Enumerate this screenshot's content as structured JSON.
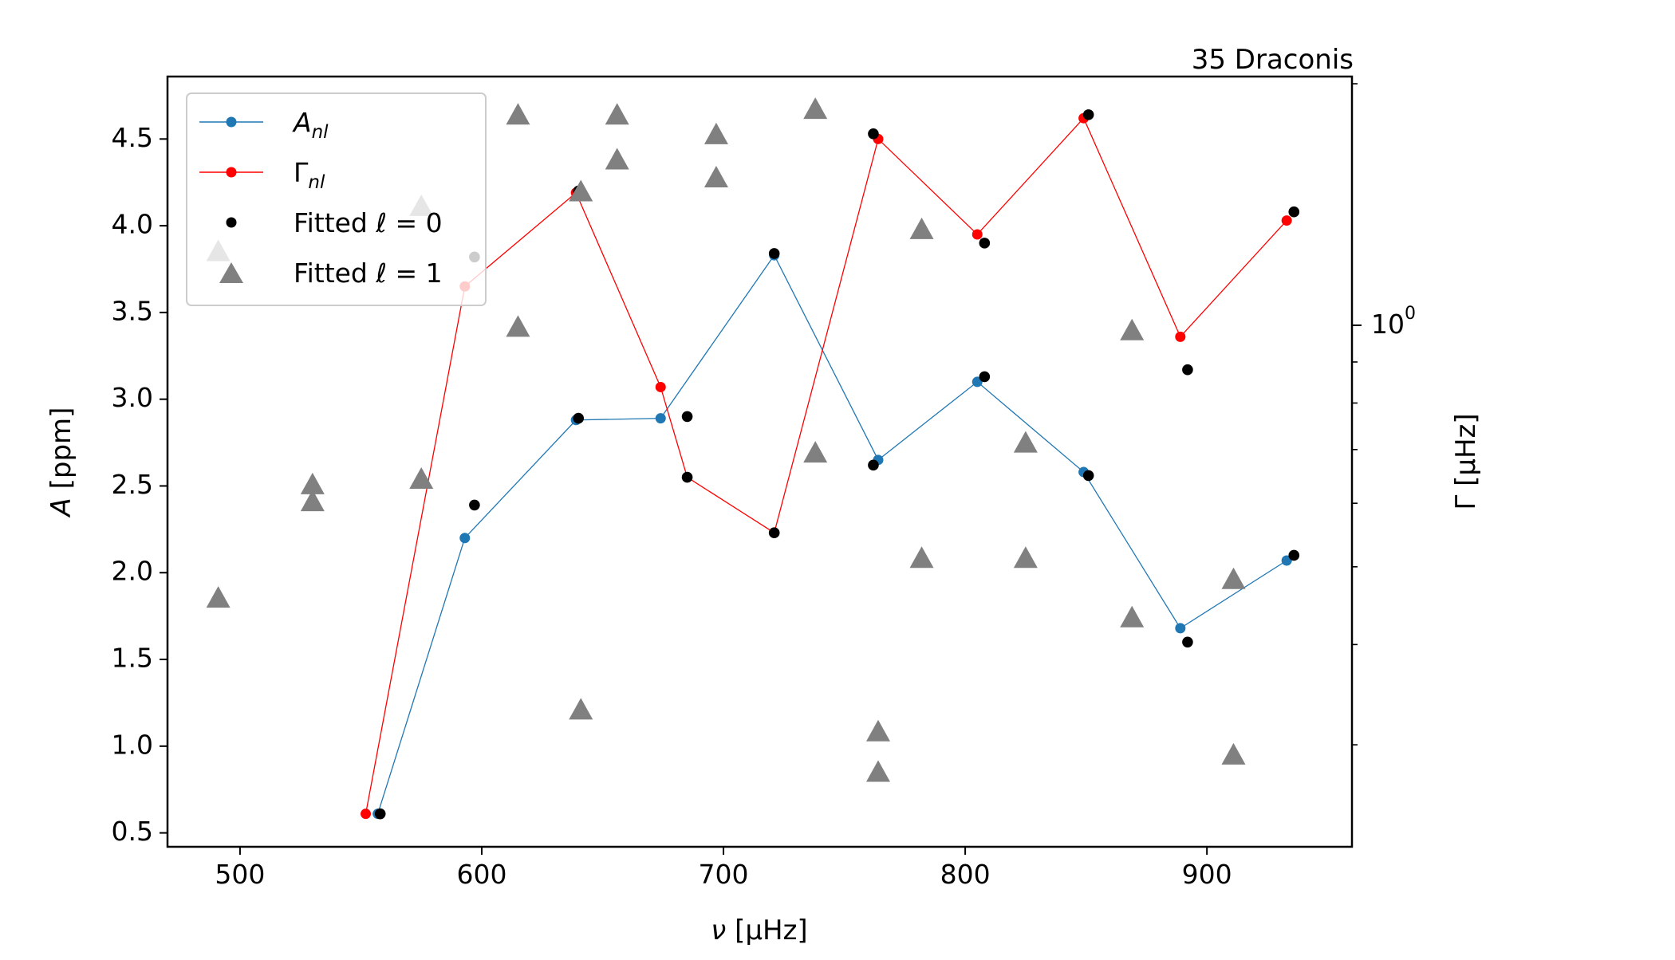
{
  "chart_data": {
    "type": "scatter",
    "title": "35 Draconis",
    "xlabel": {
      "main": "ν",
      "unit": "[μHz]"
    },
    "ylabel_left": {
      "main": "A",
      "unit": "[ppm]"
    },
    "ylabel_right": {
      "main": "Γ",
      "unit": "[μHz]"
    },
    "xlim": [
      470,
      960
    ],
    "ylim_left": [
      0.42,
      4.86
    ],
    "ylim_right_log10": [
      -0.65,
      0.31
    ],
    "y_right_scale": "log",
    "grid": false,
    "legend_position": "top-left",
    "x_ticks": [
      500,
      600,
      700,
      800,
      900
    ],
    "y_left_ticks": [
      0.5,
      1.0,
      1.5,
      2.0,
      2.5,
      3.0,
      3.5,
      4.0,
      4.5
    ],
    "y_right_major_tick": {
      "value_log10": 0,
      "label": "10",
      "exponent": "0"
    },
    "y_right_minor_ticks": [
      0.3,
      0.4,
      0.5,
      0.6,
      0.7,
      0.8,
      0.9,
      2.0
    ],
    "legend": [
      {
        "key": "amp",
        "label_main": "A",
        "label_sub": "nl"
      },
      {
        "key": "width",
        "label_main": "Γ",
        "label_sub": "nl"
      },
      {
        "key": "l0",
        "label_main": "Fitted ℓ = 0"
      },
      {
        "key": "l1",
        "label_main": "Fitted ℓ = 1"
      }
    ],
    "series": [
      {
        "key": "amp",
        "name": "A_nl",
        "axis": "left",
        "color": "#1f77b4",
        "points": [
          {
            "x": 557,
            "y": 0.61
          },
          {
            "x": 593,
            "y": 2.2
          },
          {
            "x": 639,
            "y": 2.88
          },
          {
            "x": 674,
            "y": 2.89
          },
          {
            "x": 721,
            "y": 3.83
          },
          {
            "x": 764,
            "y": 2.65
          },
          {
            "x": 805,
            "y": 3.1
          },
          {
            "x": 849,
            "y": 2.58
          },
          {
            "x": 889,
            "y": 1.68
          },
          {
            "x": 933,
            "y": 2.07
          }
        ]
      },
      {
        "key": "width",
        "name": "Γ_nl",
        "axis": "left",
        "color": "#ff0000",
        "points": [
          {
            "x": 552,
            "y": 0.61
          },
          {
            "x": 593,
            "y": 3.65
          },
          {
            "x": 639,
            "y": 4.19
          },
          {
            "x": 674,
            "y": 3.07
          },
          {
            "x": 685,
            "y": 2.55
          },
          {
            "x": 721,
            "y": 2.23
          },
          {
            "x": 764,
            "y": 4.5
          },
          {
            "x": 805,
            "y": 3.95
          },
          {
            "x": 849,
            "y": 4.62
          },
          {
            "x": 889,
            "y": 3.36
          },
          {
            "x": 933,
            "y": 4.03
          }
        ]
      },
      {
        "key": "l0",
        "name": "Fitted ℓ = 0",
        "axis": "left",
        "color": "#000000",
        "points": [
          {
            "x": 558,
            "y": 0.61
          },
          {
            "x": 597,
            "y": 2.39
          },
          {
            "x": 597,
            "y": 3.82
          },
          {
            "x": 640,
            "y": 2.89
          },
          {
            "x": 640,
            "y": 4.2
          },
          {
            "x": 685,
            "y": 2.9
          },
          {
            "x": 685,
            "y": 2.55
          },
          {
            "x": 721,
            "y": 3.84
          },
          {
            "x": 721,
            "y": 2.23
          },
          {
            "x": 762,
            "y": 2.62
          },
          {
            "x": 762,
            "y": 4.53
          },
          {
            "x": 808,
            "y": 3.13
          },
          {
            "x": 808,
            "y": 3.9
          },
          {
            "x": 851,
            "y": 2.56
          },
          {
            "x": 851,
            "y": 4.64
          },
          {
            "x": 892,
            "y": 1.6
          },
          {
            "x": 892,
            "y": 3.17
          },
          {
            "x": 936,
            "y": 2.1
          },
          {
            "x": 936,
            "y": 4.08
          }
        ]
      },
      {
        "key": "l1",
        "name": "Fitted ℓ = 1",
        "axis": "right",
        "color": "#808080",
        "points": [
          {
            "x": 491,
            "y": 1.23
          },
          {
            "x": 491,
            "y": 0.455
          },
          {
            "x": 530,
            "y": 0.63
          },
          {
            "x": 530,
            "y": 0.6
          },
          {
            "x": 575,
            "y": 1.4
          },
          {
            "x": 575,
            "y": 0.64
          },
          {
            "x": 615,
            "y": 1.82
          },
          {
            "x": 615,
            "y": 0.99
          },
          {
            "x": 641,
            "y": 1.46
          },
          {
            "x": 641,
            "y": 0.33
          },
          {
            "x": 656,
            "y": 1.82
          },
          {
            "x": 656,
            "y": 1.6
          },
          {
            "x": 697,
            "y": 1.72
          },
          {
            "x": 697,
            "y": 1.52
          },
          {
            "x": 738,
            "y": 1.85
          },
          {
            "x": 738,
            "y": 0.69
          },
          {
            "x": 764,
            "y": 0.31
          },
          {
            "x": 764,
            "y": 0.276
          },
          {
            "x": 782,
            "y": 1.31
          },
          {
            "x": 782,
            "y": 0.51
          },
          {
            "x": 825,
            "y": 0.71
          },
          {
            "x": 825,
            "y": 0.51
          },
          {
            "x": 869,
            "y": 0.98
          },
          {
            "x": 869,
            "y": 0.43
          },
          {
            "x": 911,
            "y": 0.48
          },
          {
            "x": 911,
            "y": 0.29
          }
        ]
      }
    ]
  }
}
